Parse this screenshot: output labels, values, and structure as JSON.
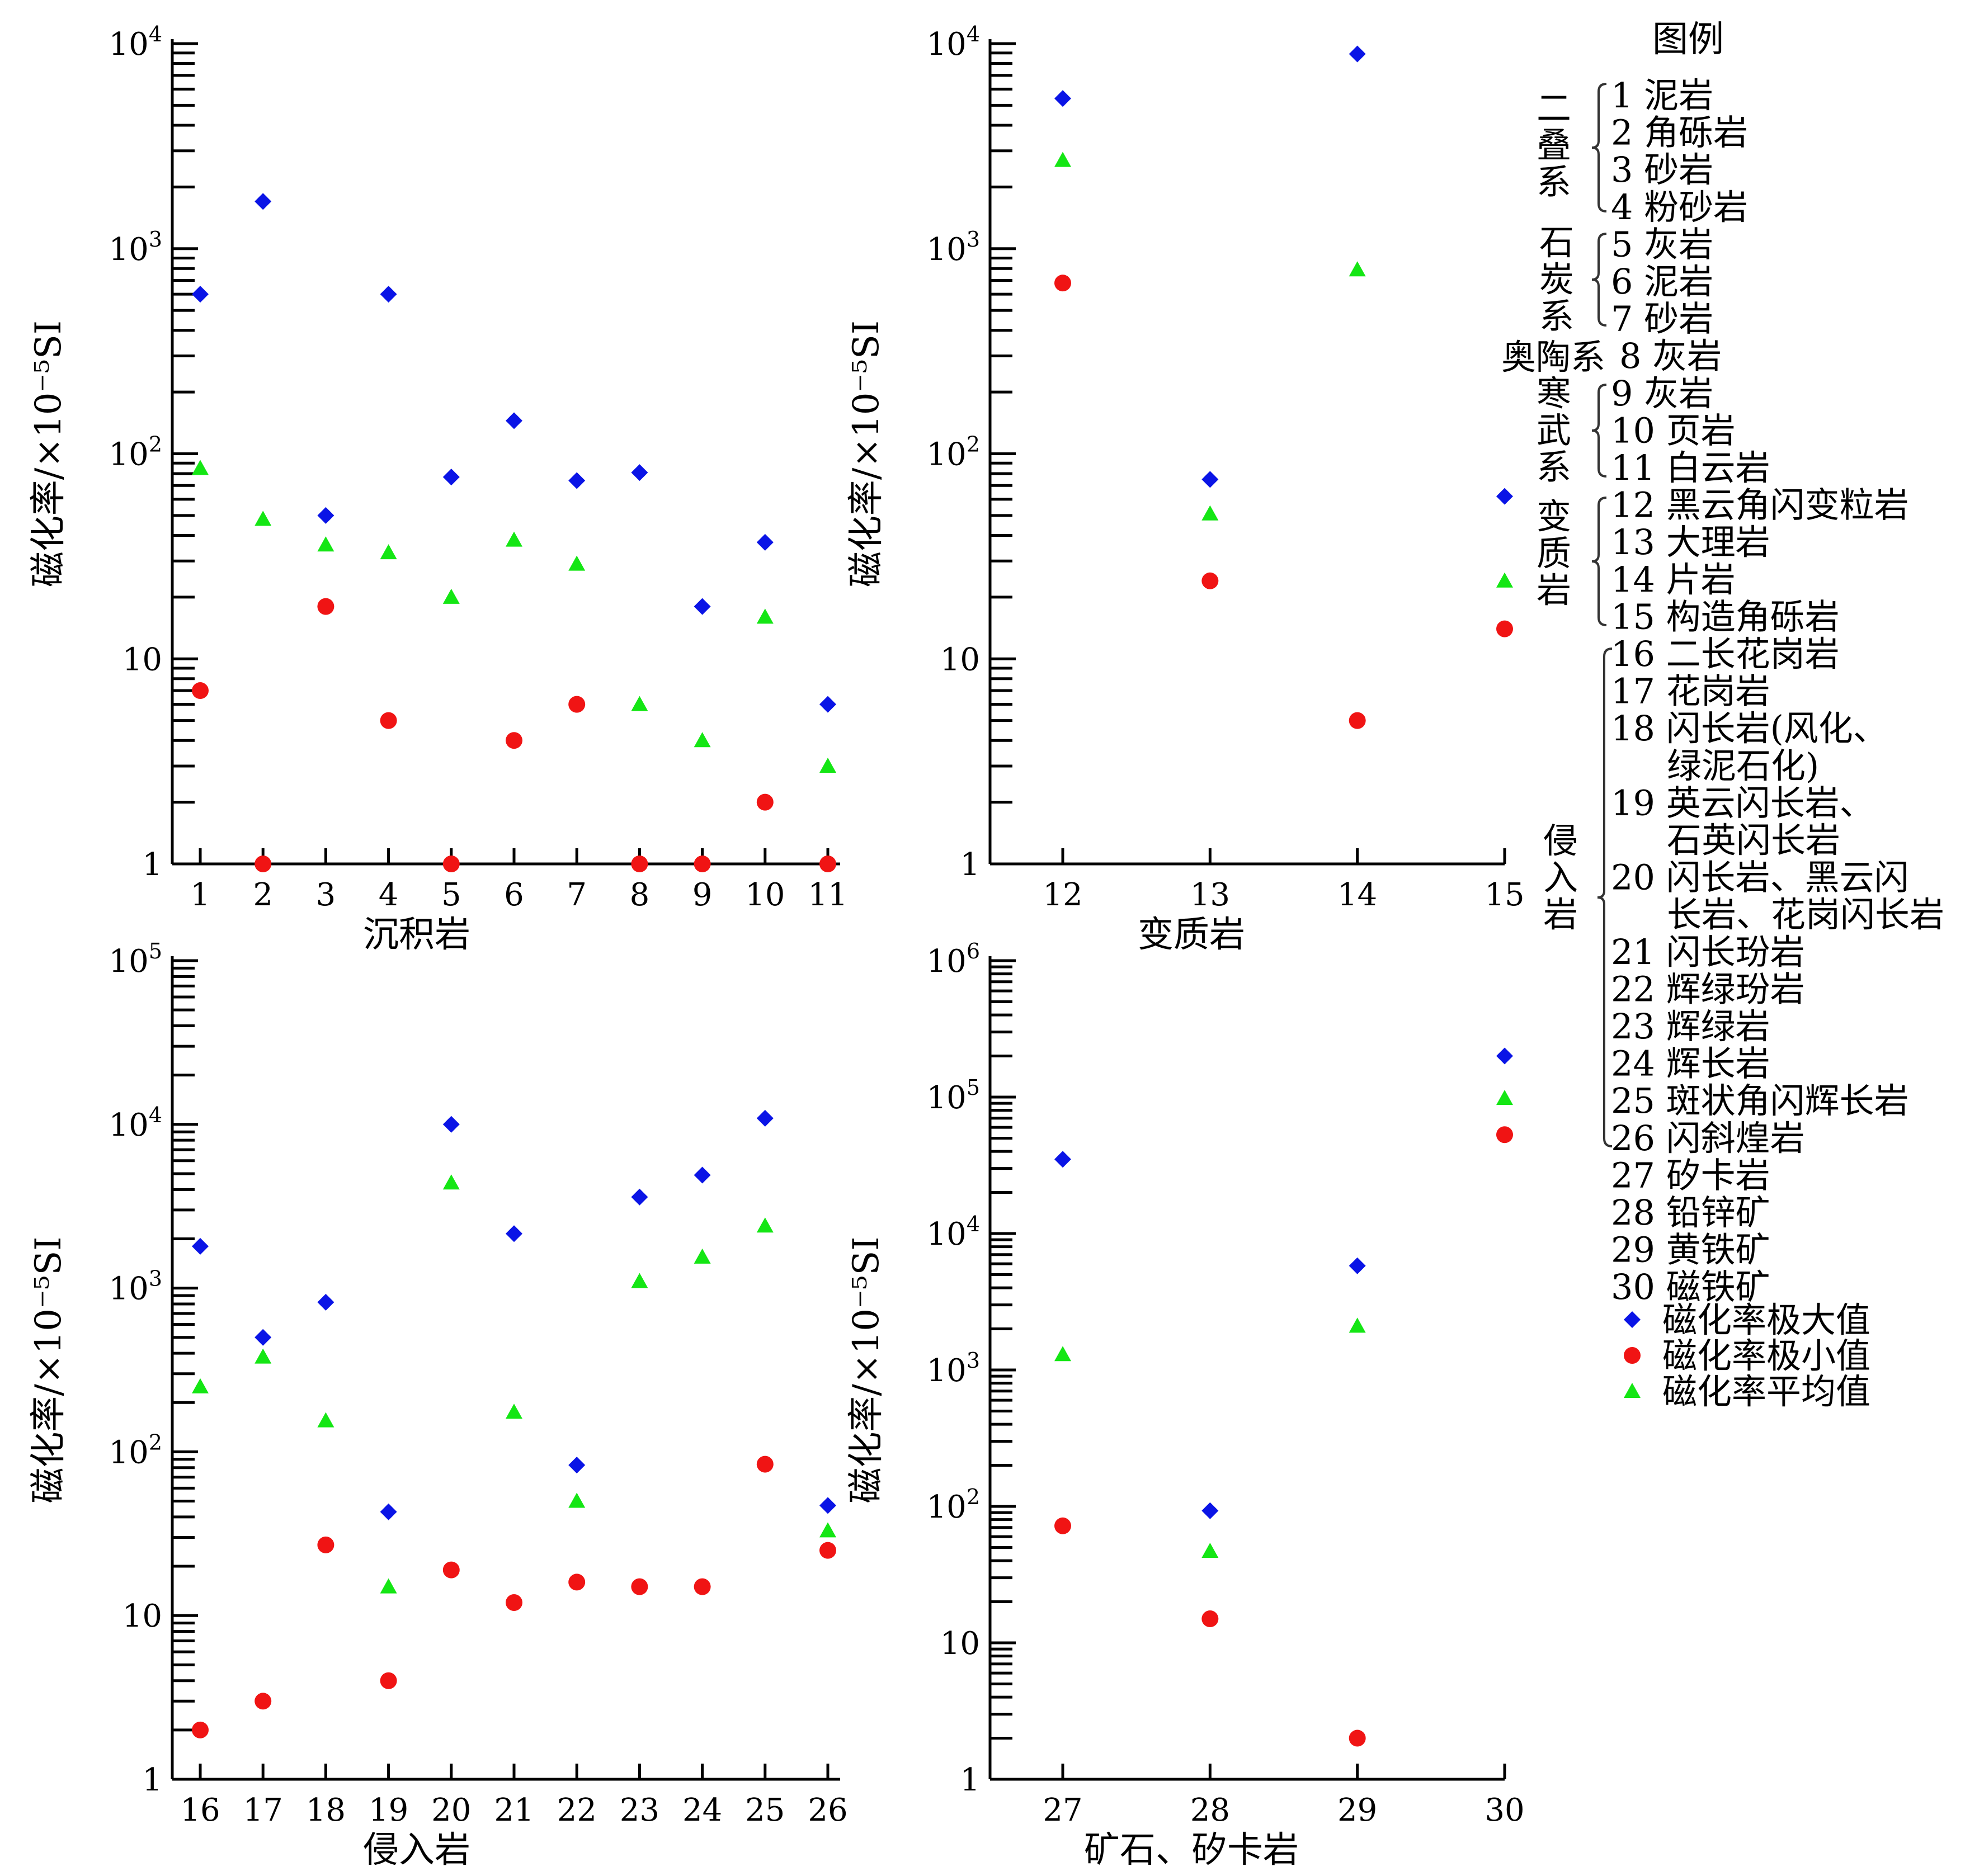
{
  "colors": {
    "max": "#0a14e6",
    "min": "#f01414",
    "avg": "#14e614",
    "axis": "#000000"
  },
  "chart_data": [
    {
      "type": "scatter",
      "id": "sedimentary",
      "xlabel": "沉积岩",
      "ylabel": "磁化率/×10⁻⁵SI",
      "yscale": "log",
      "ylim": [
        1,
        10000
      ],
      "xlim": [
        0.5,
        11.2
      ],
      "x": [
        1,
        2,
        3,
        4,
        5,
        6,
        7,
        8,
        9,
        10,
        11
      ],
      "yticks": [
        {
          "value": 1,
          "base": "1",
          "exp": ""
        },
        {
          "value": 10,
          "base": "10",
          "exp": ""
        },
        {
          "value": 100,
          "base": "10",
          "exp": "2"
        },
        {
          "value": 1000,
          "base": "10",
          "exp": "3"
        },
        {
          "value": 10000,
          "base": "10",
          "exp": "4"
        }
      ],
      "series": [
        {
          "key": "max",
          "values": [
            600,
            1700,
            50,
            600,
            77,
            145,
            74,
            81,
            18,
            37,
            6
          ]
        },
        {
          "key": "min",
          "values": [
            7,
            1,
            18,
            5,
            1,
            4,
            6,
            1,
            1,
            2,
            1
          ]
        },
        {
          "key": "avg",
          "values": [
            85,
            48,
            36,
            33,
            20,
            38,
            29,
            6,
            4,
            16,
            3
          ]
        }
      ]
    },
    {
      "type": "scatter",
      "id": "metamorphic",
      "xlabel": "变质岩",
      "ylabel": "磁化率/×10⁻⁵SI",
      "yscale": "log",
      "ylim": [
        1,
        10000
      ],
      "xlim": [
        11.5,
        15
      ],
      "x": [
        12,
        13,
        14,
        15
      ],
      "yticks": [
        {
          "value": 1,
          "base": "1",
          "exp": ""
        },
        {
          "value": 10,
          "base": "10",
          "exp": ""
        },
        {
          "value": 100,
          "base": "10",
          "exp": "2"
        },
        {
          "value": 1000,
          "base": "10",
          "exp": "3"
        },
        {
          "value": 10000,
          "base": "10",
          "exp": "4"
        }
      ],
      "series": [
        {
          "key": "max",
          "values": [
            5400,
            75,
            8900,
            62
          ]
        },
        {
          "key": "min",
          "values": [
            680,
            24,
            5,
            14
          ]
        },
        {
          "key": "avg",
          "values": [
            2700,
            51,
            790,
            24
          ]
        }
      ]
    },
    {
      "type": "scatter",
      "id": "intrusive",
      "xlabel": "侵入岩",
      "ylabel": "磁化率/×10⁻⁵SI",
      "yscale": "log",
      "ylim": [
        1,
        100000
      ],
      "xlim": [
        15.5,
        26.2
      ],
      "x": [
        16,
        17,
        18,
        19,
        20,
        21,
        22,
        23,
        24,
        25,
        26
      ],
      "yticks": [
        {
          "value": 1,
          "base": "1",
          "exp": ""
        },
        {
          "value": 10,
          "base": "10",
          "exp": ""
        },
        {
          "value": 100,
          "base": "10",
          "exp": "2"
        },
        {
          "value": 1000,
          "base": "10",
          "exp": "3"
        },
        {
          "value": 10000,
          "base": "10",
          "exp": "4"
        },
        {
          "value": 100000,
          "base": "10",
          "exp": "5"
        }
      ],
      "series": [
        {
          "key": "max",
          "values": [
            1800,
            500,
            820,
            43,
            10000,
            2150,
            83,
            3600,
            4900,
            10900,
            47
          ]
        },
        {
          "key": "min",
          "values": [
            2,
            3,
            27,
            4,
            19,
            12,
            16,
            15,
            15,
            84,
            25
          ]
        },
        {
          "key": "avg",
          "values": [
            250,
            380,
            155,
            15,
            4400,
            175,
            50,
            1100,
            1550,
            2400,
            33
          ]
        }
      ]
    },
    {
      "type": "scatter",
      "id": "ore-skarn",
      "xlabel": "矿石、矽卡岩",
      "ylabel": "磁化率/×10⁻⁵SI",
      "yscale": "log",
      "ylim": [
        1,
        1000000
      ],
      "xlim": [
        26.5,
        30
      ],
      "x": [
        27,
        28,
        29,
        30
      ],
      "yticks": [
        {
          "value": 1,
          "base": "1",
          "exp": ""
        },
        {
          "value": 10,
          "base": "10",
          "exp": ""
        },
        {
          "value": 100,
          "base": "10",
          "exp": "2"
        },
        {
          "value": 1000,
          "base": "10",
          "exp": "3"
        },
        {
          "value": 10000,
          "base": "10",
          "exp": "4"
        },
        {
          "value": 100000,
          "base": "10",
          "exp": "5"
        },
        {
          "value": 1000000,
          "base": "10",
          "exp": "6"
        }
      ],
      "series": [
        {
          "key": "max",
          "values": [
            35000,
            93,
            5800,
            200000
          ]
        },
        {
          "key": "min",
          "values": [
            72,
            15,
            2,
            53000
          ]
        },
        {
          "key": "avg",
          "values": [
            1300,
            47,
            2100,
            98000
          ]
        }
      ]
    }
  ],
  "legend": {
    "title": "图例",
    "items": [
      "1 泥岩",
      "2 角砾岩",
      "3 砂岩",
      "4 粉砂岩",
      "5 灰岩",
      "6 泥岩",
      "7 砂岩",
      "8 灰岩",
      "9 灰岩",
      "10 页岩",
      "11 白云岩",
      "12 黑云角闪变粒岩",
      "13 大理岩",
      "14 片岩",
      "15 构造角砾岩",
      "16 二长花岗岩",
      "17 花岗岩",
      "18 闪长岩(风化、",
      "绿泥石化)",
      "19 英云闪长岩、",
      "石英闪长岩",
      "20 闪长岩、黑云闪",
      "长岩、花岗闪长岩",
      "21 闪长玢岩",
      "22 辉绿玢岩",
      "23 辉绿岩",
      "24 辉长岩",
      "25 斑状角闪辉长岩",
      "26 闪斜煌岩",
      "27 矽卡岩",
      "28 铅锌矿",
      "29 黄铁矿",
      "30 磁铁矿"
    ],
    "groups": {
      "permian": "二叠系",
      "carboniferous": "石炭系",
      "ordovician": "奥陶系",
      "cambrian": "寒武系",
      "metamorphic": "变质岩",
      "intrusive": "侵入岩"
    },
    "series_labels": {
      "max": "磁化率极大值",
      "min": "磁化率极小值",
      "avg": "磁化率平均值"
    }
  }
}
